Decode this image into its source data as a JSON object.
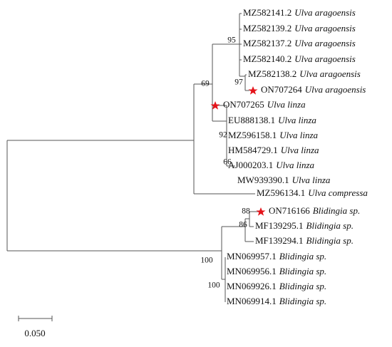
{
  "leaves": [
    {
      "accession": "MZ582141.2",
      "species": "Ulva aragoensis"
    },
    {
      "accession": "MZ582139.2",
      "species": "Ulva aragoensis"
    },
    {
      "accession": "MZ582137.2",
      "species": "Ulva aragoensis"
    },
    {
      "accession": "MZ582140.2",
      "species": "Ulva aragoensis"
    },
    {
      "accession": "MZ582138.2",
      "species": "Ulva aragoensis"
    },
    {
      "accession": "ON707264",
      "species": "Ulva aragoensis"
    },
    {
      "accession": "ON707265",
      "species": "Ulva linza"
    },
    {
      "accession": "EU888138.1",
      "species": "Ulva linza"
    },
    {
      "accession": "MZ596158.1",
      "species": "Ulva linza"
    },
    {
      "accession": "HM584729.1",
      "species": "Ulva linza"
    },
    {
      "accession": "AJ000203.1",
      "species": "Ulva linza"
    },
    {
      "accession": "MW939390.1",
      "species": "Ulva linza"
    },
    {
      "accession": "MZ596134.1",
      "species": "Ulva compressa"
    },
    {
      "accession": "ON716166",
      "species": "Blidingia sp."
    },
    {
      "accession": "MF139295.1",
      "species": "Blidingia sp."
    },
    {
      "accession": "MF139294.1",
      "species": "Blidingia sp."
    },
    {
      "accession": "MN069957.1",
      "species": "Blidingia sp."
    },
    {
      "accession": "MN069956.1",
      "species": "Blidingia sp."
    },
    {
      "accession": "MN069926.1",
      "species": "Blidingia sp."
    },
    {
      "accession": "MN069914.1",
      "species": "Blidingia sp."
    }
  ],
  "bootstraps": [
    "95",
    "97",
    "69",
    "92",
    "66",
    "88",
    "86",
    "100",
    "100"
  ],
  "scale_label": "0.050"
}
